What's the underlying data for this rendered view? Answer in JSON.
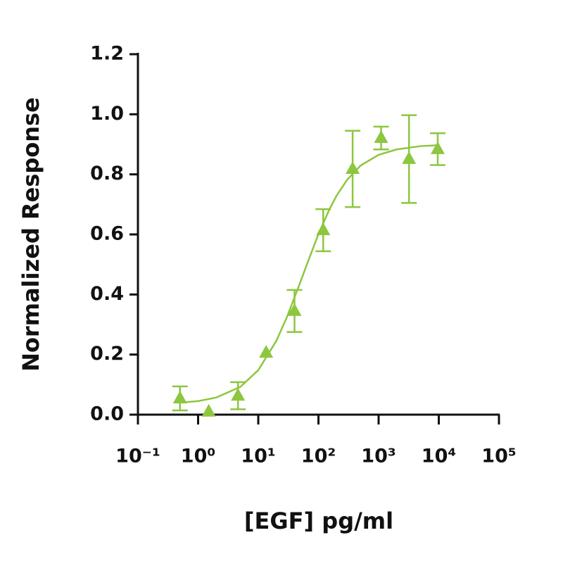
{
  "chart_data": {
    "type": "scatter",
    "xlabel": "[EGF] pg/ml",
    "ylabel": "Normalized Response",
    "xscale": "log",
    "xlim": [
      0.1,
      100000
    ],
    "ylim": [
      0,
      1.2
    ],
    "xticks": [
      {
        "value": 0.1,
        "label": "10⁻¹"
      },
      {
        "value": 1,
        "label": "10⁰"
      },
      {
        "value": 10,
        "label": "10¹"
      },
      {
        "value": 100,
        "label": "10²"
      },
      {
        "value": 1000,
        "label": "10³"
      },
      {
        "value": 10000,
        "label": "10⁴"
      },
      {
        "value": 100000,
        "label": "10⁵"
      }
    ],
    "yticks": [
      {
        "value": 0,
        "label": "0.0"
      },
      0.2,
      0.4,
      0.6,
      0.8,
      {
        "value": 1,
        "label": "1.0"
      },
      1.2
    ],
    "grid": false,
    "series": [
      {
        "type": "scatter",
        "marker": "triangle",
        "color": "#8dc63f",
        "x": [
          0.5,
          1.5,
          4.6,
          13.5,
          40,
          120,
          370,
          1100,
          3200,
          9600
        ],
        "values": [
          0.054,
          0.01,
          0.063,
          0.206,
          0.345,
          0.614,
          0.818,
          0.921,
          0.851,
          0.884
        ],
        "errors": [
          0.04,
          null,
          0.045,
          null,
          0.07,
          0.07,
          0.127,
          0.038,
          0.146,
          0.053
        ]
      },
      {
        "type": "line",
        "color": "#8dc63f",
        "x": [
          0.5,
          1,
          2,
          5,
          10,
          20,
          30,
          50,
          70,
          100,
          150,
          200,
          300,
          500,
          1000,
          2000,
          5000,
          10000
        ],
        "values": [
          0.04,
          0.045,
          0.057,
          0.092,
          0.148,
          0.246,
          0.325,
          0.441,
          0.52,
          0.601,
          0.681,
          0.729,
          0.782,
          0.829,
          0.865,
          0.883,
          0.894,
          0.897
        ]
      }
    ]
  }
}
